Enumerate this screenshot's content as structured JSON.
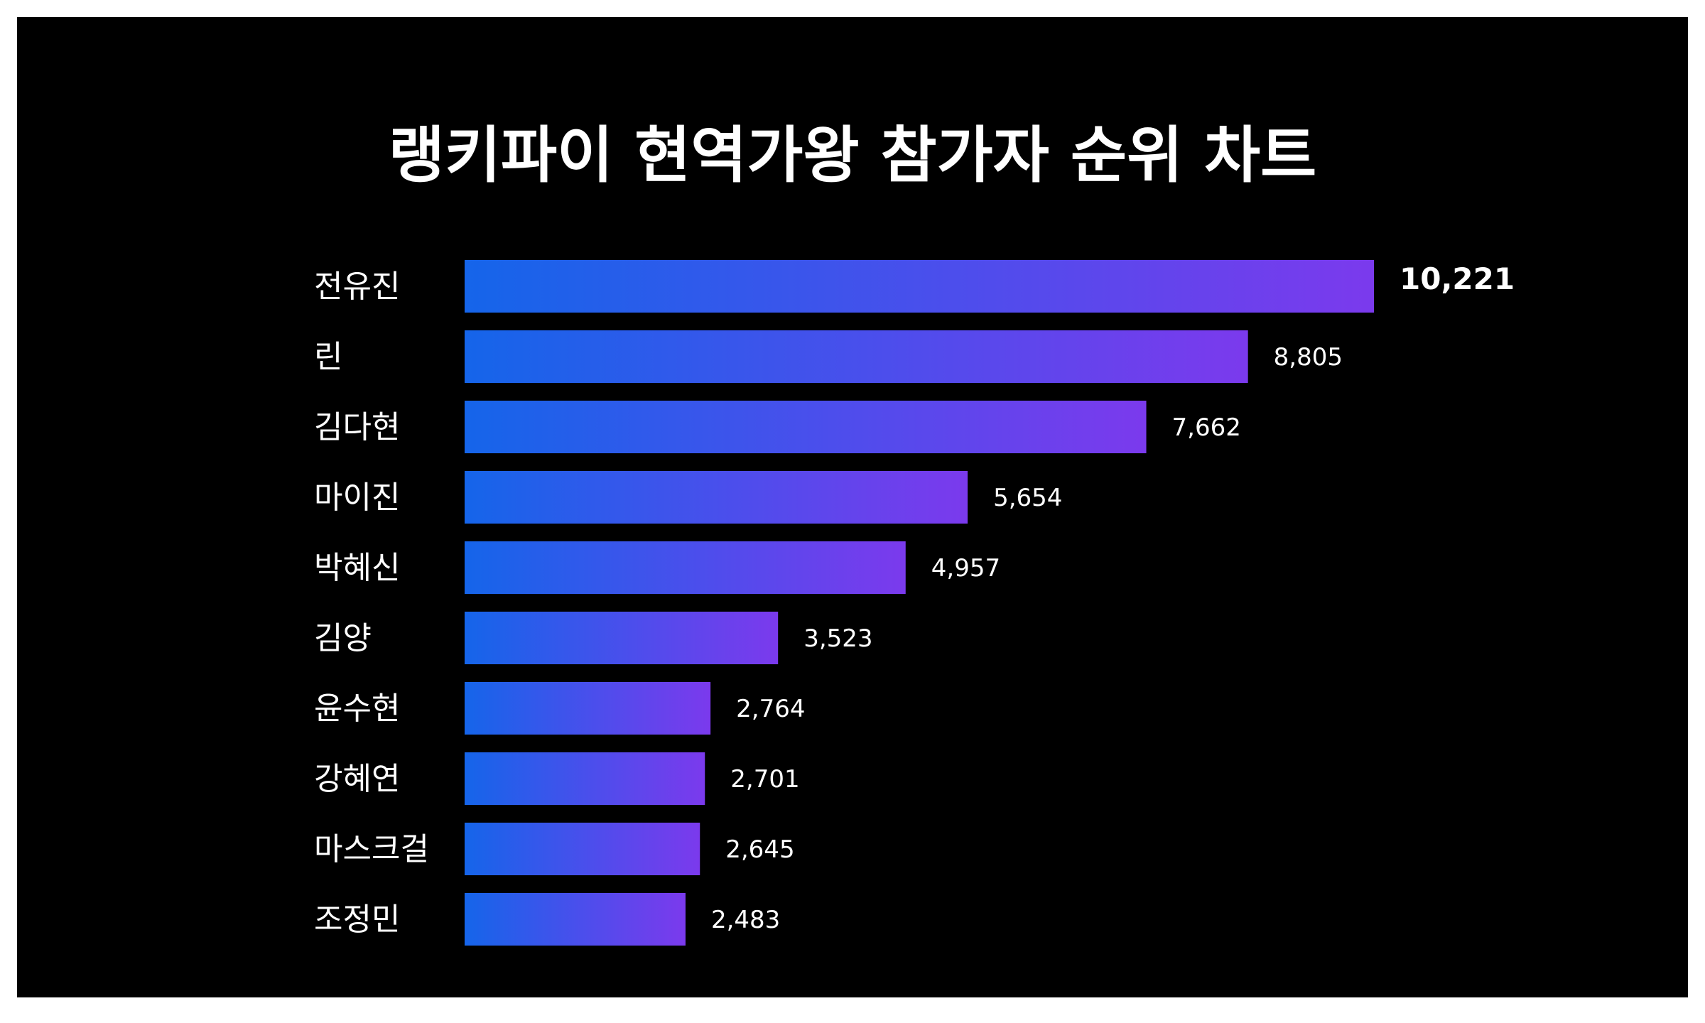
{
  "chart_data": {
    "type": "bar",
    "orientation": "horizontal",
    "title": "랭키파이 현역가왕 참가자 순위 차트",
    "categories": [
      "전유진",
      "린",
      "김다현",
      "마이진",
      "박혜신",
      "김양",
      "윤수현",
      "강혜연",
      "마스크걸",
      "조정민"
    ],
    "values": [
      10221,
      8805,
      7662,
      5654,
      4957,
      3523,
      2764,
      2701,
      2645,
      2483
    ],
    "value_labels": [
      "10,221",
      "8,805",
      "7,662",
      "5,654",
      "4,957",
      "3,523",
      "2,764",
      "2,701",
      "2,645",
      "2,483"
    ],
    "xlim": [
      0,
      10221
    ],
    "grid": false,
    "legend": "none",
    "colors": {
      "background": "#000000",
      "gradient_start": "#1565ea",
      "gradient_end": "#7b3aed",
      "text": "#ffffff"
    }
  }
}
